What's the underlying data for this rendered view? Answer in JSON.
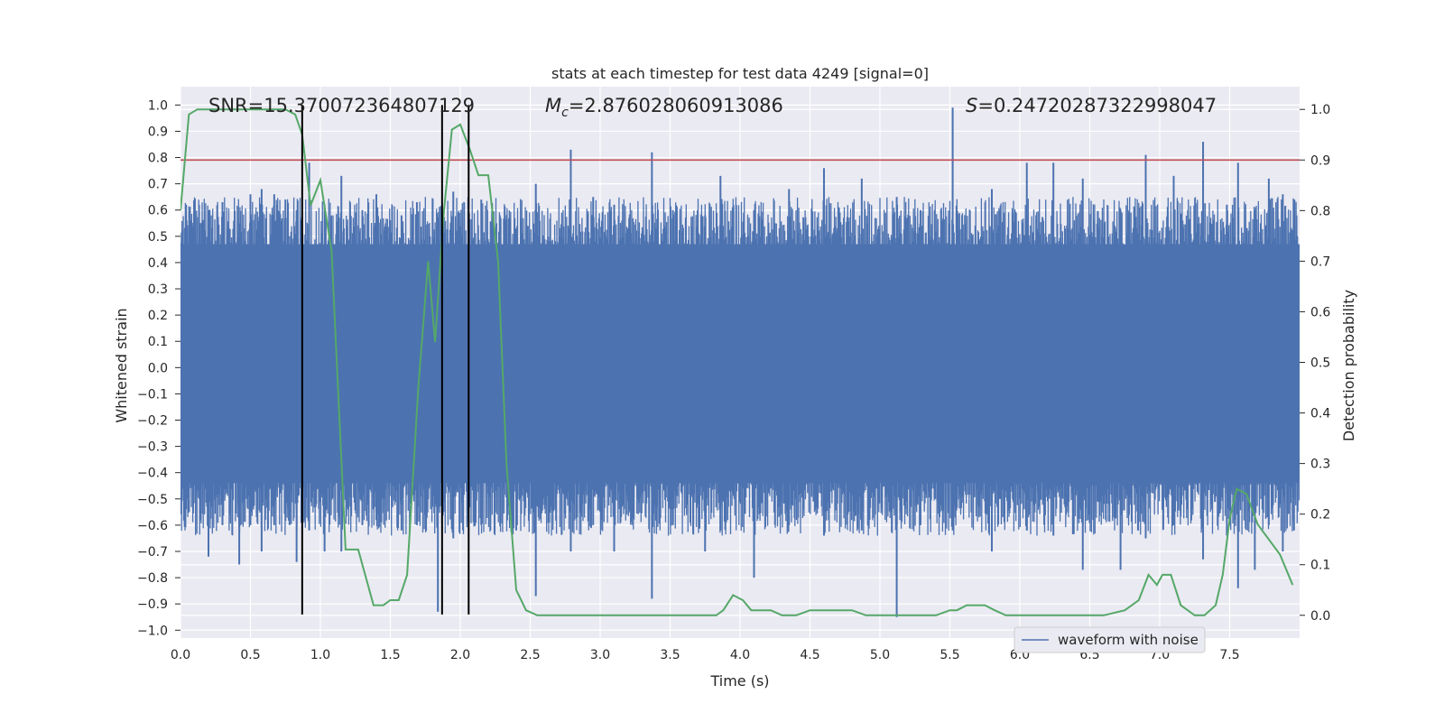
{
  "chart_data": {
    "type": "line",
    "title": "stats at each timestep for test data 4249 [signal=0]",
    "xlabel": "Time (s)",
    "ylabel_left": "Whitened strain",
    "ylabel_right": "Detection probability",
    "xlim": [
      0.0,
      8.0
    ],
    "ylim_left": [
      -1.03,
      1.07
    ],
    "ylim_right": [
      -0.045,
      1.045
    ],
    "x_ticks": [
      0.0,
      0.5,
      1.0,
      1.5,
      2.0,
      2.5,
      3.0,
      3.5,
      4.0,
      4.5,
      5.0,
      5.5,
      6.0,
      6.5,
      7.0,
      7.5
    ],
    "x_tick_labels": [
      "0.0",
      "0.5",
      "1.0",
      "1.5",
      "2.0",
      "2.5",
      "3.0",
      "3.5",
      "4.0",
      "4.5",
      "5.0",
      "5.5",
      "6.0",
      "6.5",
      "7.0",
      "7.5"
    ],
    "y_left_ticks": [
      1.0,
      0.9,
      0.8,
      0.7,
      0.6,
      0.5,
      0.4,
      0.3,
      0.2,
      0.1,
      0.0,
      -0.1,
      -0.2,
      -0.3,
      -0.4,
      -0.5,
      -0.6,
      -0.7,
      -0.8,
      -0.9,
      -1.0
    ],
    "y_left_tick_labels": [
      "1.0",
      "0.9",
      "0.8",
      "0.7",
      "0.6",
      "0.5",
      "0.4",
      "0.3",
      "0.2",
      "0.1",
      "0.0",
      "−0.1",
      "−0.2",
      "−0.3",
      "−0.4",
      "−0.5",
      "−0.6",
      "−0.7",
      "−0.8",
      "−0.9",
      "−1.0"
    ],
    "y_right_ticks": [
      1.0,
      0.9,
      0.8,
      0.7,
      0.6,
      0.5,
      0.4,
      0.3,
      0.2,
      0.1,
      0.0
    ],
    "y_right_tick_labels": [
      "1.0",
      "0.9",
      "0.8",
      "0.7",
      "0.6",
      "0.5",
      "0.4",
      "0.3",
      "0.2",
      "0.1",
      "0.0"
    ],
    "grid": true,
    "annotations": [
      {
        "text": "SNR=15.370072364807129",
        "x": 0.2,
        "y": 1.0
      },
      {
        "math_symbol": "M",
        "math_sub": "c",
        "text": "=2.876028060913086",
        "x": 2.6,
        "y": 1.0
      },
      {
        "math_symbol": "S",
        "text": "=0.24720287322998047",
        "x": 5.6,
        "y": 1.0
      }
    ],
    "legend": {
      "position": "lower-right",
      "entries": [
        {
          "name": "waveform with noise",
          "color": "#4c72b0"
        }
      ]
    },
    "threshold_line": {
      "y_right": 0.9,
      "color": "#c44e52"
    },
    "vertical_lines": [
      0.87,
      1.87,
      2.06
    ],
    "series": [
      {
        "name": "waveform with noise",
        "axis": "left",
        "color": "#4c72b0",
        "kind": "noise",
        "dense_band": [
          -0.44,
          0.47
        ],
        "spikes": [
          {
            "x": 0.04,
            "ymin": -0.54,
            "ymax": 0.62
          },
          {
            "x": 0.14,
            "ymin": -0.58,
            "ymax": 0.55
          },
          {
            "x": 0.2,
            "ymin": -0.72,
            "ymax": 0.6
          },
          {
            "x": 0.3,
            "ymin": -0.6,
            "ymax": 0.63
          },
          {
            "x": 0.42,
            "ymin": -0.75,
            "ymax": 0.55
          },
          {
            "x": 0.5,
            "ymin": -0.6,
            "ymax": 0.66
          },
          {
            "x": 0.58,
            "ymin": -0.7,
            "ymax": 0.68
          },
          {
            "x": 0.67,
            "ymin": -0.6,
            "ymax": 0.66
          },
          {
            "x": 0.75,
            "ymin": -0.5,
            "ymax": 0.64
          },
          {
            "x": 0.83,
            "ymin": -0.74,
            "ymax": 0.6
          },
          {
            "x": 0.92,
            "ymin": -0.62,
            "ymax": 0.78
          },
          {
            "x": 1.03,
            "ymin": -0.7,
            "ymax": 0.62
          },
          {
            "x": 1.15,
            "ymin": -0.7,
            "ymax": 0.73
          },
          {
            "x": 1.3,
            "ymin": -0.6,
            "ymax": 0.6
          },
          {
            "x": 1.4,
            "ymin": -0.58,
            "ymax": 0.66
          },
          {
            "x": 1.58,
            "ymin": -0.62,
            "ymax": 0.58
          },
          {
            "x": 1.69,
            "ymin": -0.6,
            "ymax": 0.63
          },
          {
            "x": 1.84,
            "ymin": -0.93,
            "ymax": 0.55
          },
          {
            "x": 1.95,
            "ymin": -0.65,
            "ymax": 0.67
          },
          {
            "x": 2.15,
            "ymin": -0.6,
            "ymax": 0.64
          },
          {
            "x": 2.4,
            "ymin": -0.62,
            "ymax": 0.53
          },
          {
            "x": 2.54,
            "ymin": -0.87,
            "ymax": 0.7
          },
          {
            "x": 2.79,
            "ymin": -0.7,
            "ymax": 0.83
          },
          {
            "x": 2.95,
            "ymin": -0.6,
            "ymax": 0.65
          },
          {
            "x": 3.1,
            "ymin": -0.7,
            "ymax": 0.62
          },
          {
            "x": 3.37,
            "ymin": -0.88,
            "ymax": 0.82
          },
          {
            "x": 3.52,
            "ymin": -0.6,
            "ymax": 0.6
          },
          {
            "x": 3.75,
            "ymin": -0.7,
            "ymax": 0.58
          },
          {
            "x": 3.86,
            "ymin": -0.62,
            "ymax": 0.73
          },
          {
            "x": 4.1,
            "ymin": -0.8,
            "ymax": 0.6
          },
          {
            "x": 4.35,
            "ymin": -0.6,
            "ymax": 0.68
          },
          {
            "x": 4.6,
            "ymin": -0.64,
            "ymax": 0.76
          },
          {
            "x": 4.87,
            "ymin": -0.62,
            "ymax": 0.72
          },
          {
            "x": 5.12,
            "ymin": -0.95,
            "ymax": 0.65
          },
          {
            "x": 5.29,
            "ymin": -0.6,
            "ymax": 0.6
          },
          {
            "x": 5.52,
            "ymin": -0.62,
            "ymax": 0.99
          },
          {
            "x": 5.8,
            "ymin": -0.7,
            "ymax": 0.68
          },
          {
            "x": 6.05,
            "ymin": -0.62,
            "ymax": 0.78
          },
          {
            "x": 6.24,
            "ymin": -0.64,
            "ymax": 0.78
          },
          {
            "x": 6.45,
            "ymin": -0.77,
            "ymax": 0.72
          },
          {
            "x": 6.72,
            "ymin": -0.77,
            "ymax": 0.6
          },
          {
            "x": 6.9,
            "ymin": -0.65,
            "ymax": 0.81
          },
          {
            "x": 7.1,
            "ymin": -0.6,
            "ymax": 0.73
          },
          {
            "x": 7.31,
            "ymin": -0.73,
            "ymax": 0.86
          },
          {
            "x": 7.48,
            "ymin": -0.64,
            "ymax": 0.62
          },
          {
            "x": 7.56,
            "ymin": -0.84,
            "ymax": 0.78
          },
          {
            "x": 7.68,
            "ymin": -0.77,
            "ymax": 0.6
          },
          {
            "x": 7.78,
            "ymin": -0.6,
            "ymax": 0.72
          },
          {
            "x": 7.88,
            "ymin": -0.7,
            "ymax": 0.66
          },
          {
            "x": 7.96,
            "ymin": -0.62,
            "ymax": 0.64
          }
        ]
      },
      {
        "name": "detection probability",
        "axis": "right",
        "color": "#55a868",
        "x": [
          0.0,
          0.06,
          0.12,
          0.2,
          0.4,
          0.6,
          0.75,
          0.82,
          0.87,
          0.93,
          1.0,
          1.08,
          1.18,
          1.27,
          1.38,
          1.45,
          1.5,
          1.56,
          1.62,
          1.7,
          1.77,
          1.82,
          1.88,
          1.94,
          2.0,
          2.07,
          2.13,
          2.2,
          2.27,
          2.33,
          2.4,
          2.47,
          2.55,
          2.7,
          2.9,
          3.1,
          3.3,
          3.5,
          3.65,
          3.75,
          3.83,
          3.88,
          3.95,
          4.02,
          4.08,
          4.15,
          4.22,
          4.3,
          4.4,
          4.5,
          4.6,
          4.7,
          4.8,
          4.9,
          5.0,
          5.2,
          5.4,
          5.5,
          5.55,
          5.62,
          5.68,
          5.75,
          5.82,
          5.9,
          6.0,
          6.2,
          6.4,
          6.6,
          6.75,
          6.85,
          6.92,
          6.98,
          7.02,
          7.08,
          7.15,
          7.2,
          7.25,
          7.32,
          7.4,
          7.45,
          7.5,
          7.55,
          7.62,
          7.7,
          7.78,
          7.86,
          7.95
        ],
        "y": [
          0.8,
          0.99,
          1.0,
          1.0,
          1.0,
          1.0,
          1.0,
          0.99,
          0.95,
          0.81,
          0.86,
          0.72,
          0.13,
          0.13,
          0.02,
          0.02,
          0.03,
          0.03,
          0.08,
          0.45,
          0.7,
          0.54,
          0.79,
          0.96,
          0.97,
          0.92,
          0.87,
          0.87,
          0.7,
          0.3,
          0.05,
          0.01,
          0.0,
          0.0,
          0.0,
          0.0,
          0.0,
          0.0,
          0.0,
          0.0,
          0.0,
          0.01,
          0.04,
          0.03,
          0.01,
          0.01,
          0.01,
          0.0,
          0.0,
          0.01,
          0.01,
          0.01,
          0.01,
          0.0,
          0.0,
          0.0,
          0.0,
          0.01,
          0.01,
          0.02,
          0.02,
          0.02,
          0.01,
          0.0,
          0.0,
          0.0,
          0.0,
          0.0,
          0.01,
          0.03,
          0.08,
          0.06,
          0.08,
          0.08,
          0.02,
          0.01,
          0.0,
          0.0,
          0.02,
          0.08,
          0.19,
          0.25,
          0.24,
          0.18,
          0.15,
          0.12,
          0.06
        ]
      }
    ]
  }
}
